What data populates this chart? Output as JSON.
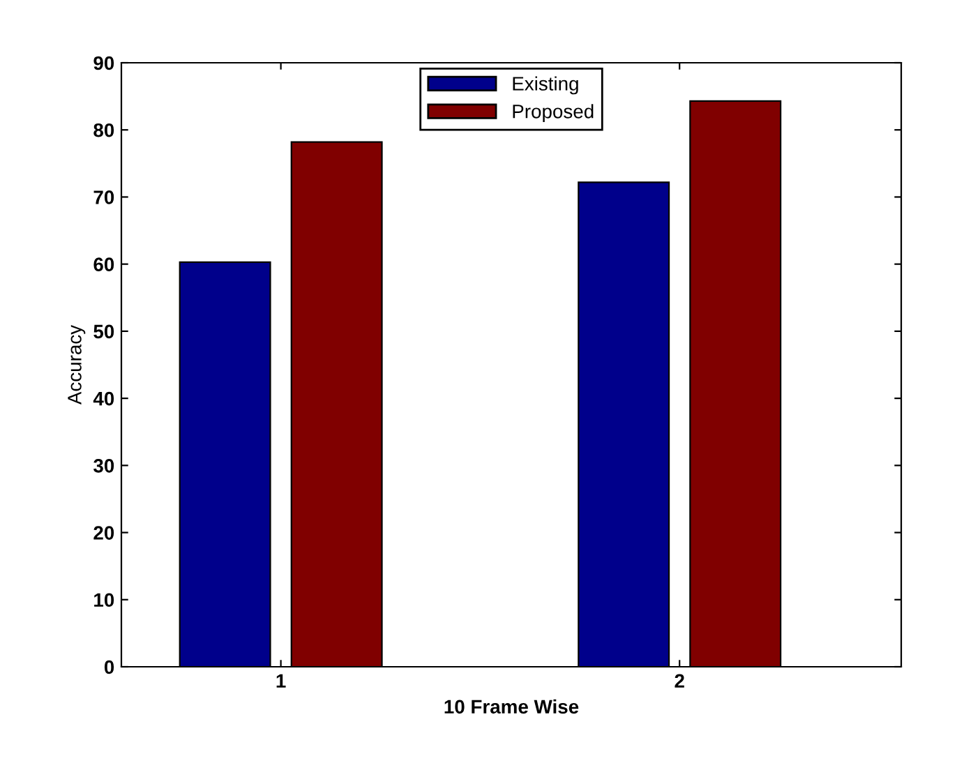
{
  "chart_data": {
    "type": "bar",
    "xlabel": "10 Frame Wise",
    "ylabel": "Accuracy",
    "categories": [
      "1",
      "2"
    ],
    "series": [
      {
        "name": "Existing",
        "color": "#00008b",
        "values": [
          60.3,
          72.2
        ]
      },
      {
        "name": "Proposed",
        "color": "#800000",
        "values": [
          78.2,
          84.3
        ]
      }
    ],
    "ylim": [
      0,
      90
    ],
    "yticks": [
      0,
      10,
      20,
      30,
      40,
      50,
      60,
      70,
      80,
      90
    ],
    "grid": false,
    "legend": "top"
  }
}
